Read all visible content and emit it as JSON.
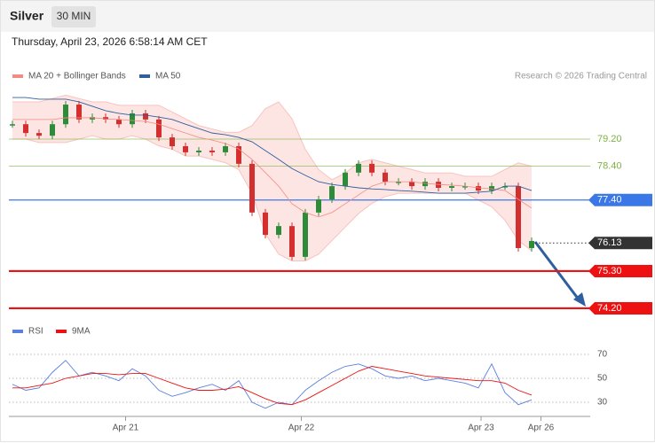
{
  "header": {
    "instrument": "Silver",
    "timeframe": "30 MIN"
  },
  "timestamp": "Thursday, April 23, 2026 6:58:14 AM CET",
  "copyright": "Research © 2026 Trading Central",
  "chart_data": [
    {
      "type": "candlestick",
      "close": [
        79.64,
        79.38,
        79.3,
        79.64,
        80.22,
        79.78,
        79.85,
        79.78,
        79.64,
        79.96,
        79.78,
        79.25,
        78.99,
        78.81,
        78.86,
        78.81,
        78.99,
        78.47,
        77.03,
        76.37,
        76.63,
        75.72,
        77.03,
        77.42,
        77.81,
        78.21,
        78.47,
        78.21,
        77.94,
        77.94,
        77.81,
        77.94,
        77.76,
        77.81,
        77.81,
        77.68,
        77.81,
        77.81,
        75.98,
        76.19
      ],
      "up_color": "#2e8b3a",
      "down_color": "#d32f2f",
      "series": [
        {
          "name": "MA 20 + Bollinger Bands",
          "color": "#f28b82",
          "values": [
            79.78,
            79.78,
            79.78,
            79.78,
            79.83,
            79.83,
            79.83,
            79.8,
            79.78,
            79.75,
            79.72,
            79.64,
            79.51,
            79.38,
            79.25,
            79.17,
            79.07,
            78.91,
            78.6,
            78.21,
            77.81,
            77.29,
            77.03,
            76.9,
            77.03,
            77.29,
            77.55,
            77.81,
            77.94,
            77.94,
            77.94,
            77.89,
            77.86,
            77.84,
            77.81,
            77.76,
            77.73,
            77.68,
            77.42,
            77.16
          ],
          "upper": [
            80.3,
            80.3,
            80.3,
            80.4,
            80.5,
            80.4,
            80.3,
            80.3,
            80.2,
            80.2,
            80.2,
            80.2,
            80.0,
            79.8,
            79.6,
            79.5,
            79.4,
            79.4,
            79.6,
            80.1,
            80.3,
            79.8,
            78.9,
            78.3,
            78.0,
            78.2,
            78.5,
            78.6,
            78.5,
            78.4,
            78.3,
            78.2,
            78.2,
            78.2,
            78.1,
            78.1,
            78.1,
            78.3,
            78.5,
            78.4
          ],
          "lower": [
            79.2,
            79.2,
            79.1,
            79.1,
            79.1,
            79.2,
            79.3,
            79.2,
            79.2,
            79.3,
            79.2,
            79.0,
            78.9,
            78.7,
            78.7,
            78.6,
            78.5,
            78.3,
            77.6,
            76.4,
            75.8,
            75.6,
            75.6,
            75.8,
            76.2,
            76.6,
            77.0,
            77.3,
            77.5,
            77.6,
            77.6,
            77.6,
            77.6,
            77.6,
            77.6,
            77.4,
            77.2,
            76.8,
            76.2,
            75.9
          ]
        },
        {
          "name": "MA 50",
          "color": "#2f5f9e",
          "values": [
            80.43,
            80.43,
            80.38,
            80.38,
            80.38,
            80.3,
            80.17,
            80.04,
            79.96,
            79.91,
            79.91,
            79.85,
            79.78,
            79.64,
            79.51,
            79.38,
            79.33,
            79.25,
            79.12,
            78.86,
            78.6,
            78.33,
            78.13,
            77.94,
            77.86,
            77.81,
            77.76,
            77.73,
            77.71,
            77.68,
            77.66,
            77.63,
            77.6,
            77.6,
            77.6,
            77.63,
            77.66,
            77.81,
            77.81,
            77.68
          ]
        }
      ],
      "levels": [
        {
          "value": 79.2,
          "label": "79.20",
          "color": "#7cb342",
          "style": "line"
        },
        {
          "value": 78.4,
          "label": "78.40",
          "color": "#7cb342",
          "style": "line"
        },
        {
          "value": 77.4,
          "label": "77.40",
          "color": "#3b78e7",
          "style": "tag"
        },
        {
          "value": 76.13,
          "label": "76.13",
          "color": "#333333",
          "style": "current"
        },
        {
          "value": 75.3,
          "label": "75.30",
          "color": "#ee1111",
          "style": "tag"
        },
        {
          "value": 74.2,
          "label": "74.20",
          "color": "#ee1111",
          "style": "tag"
        }
      ],
      "ylim": [
        74.0,
        80.8
      ],
      "xlim": [
        0,
        39
      ]
    },
    {
      "type": "line",
      "series": [
        {
          "name": "RSI",
          "color": "#5b7fde",
          "values": [
            45,
            40,
            42,
            55,
            65,
            52,
            55,
            52,
            48,
            58,
            52,
            40,
            35,
            38,
            42,
            45,
            40,
            48,
            30,
            25,
            30,
            28,
            40,
            48,
            55,
            60,
            62,
            58,
            52,
            50,
            52,
            48,
            50,
            48,
            46,
            42,
            62,
            38,
            28,
            32
          ]
        },
        {
          "name": "9MA",
          "color": "#ee1111",
          "values": [
            42,
            42,
            44,
            46,
            50,
            52,
            54,
            54,
            53,
            54,
            54,
            50,
            46,
            42,
            40,
            40,
            41,
            43,
            38,
            33,
            29,
            28,
            32,
            38,
            44,
            50,
            56,
            60,
            58,
            56,
            54,
            52,
            51,
            50,
            49,
            48,
            48,
            46,
            40,
            36
          ]
        }
      ],
      "ylim": [
        20,
        80
      ],
      "yticks": [
        70,
        50,
        30
      ],
      "xlim": [
        0,
        39
      ],
      "xticks": [
        {
          "value": 8.5,
          "label": "Apr 21"
        },
        {
          "value": 21.7,
          "label": "Apr 22"
        },
        {
          "value": 35.2,
          "label": "Apr 23"
        },
        {
          "value": 39.7,
          "label": "Apr 26"
        }
      ]
    }
  ]
}
